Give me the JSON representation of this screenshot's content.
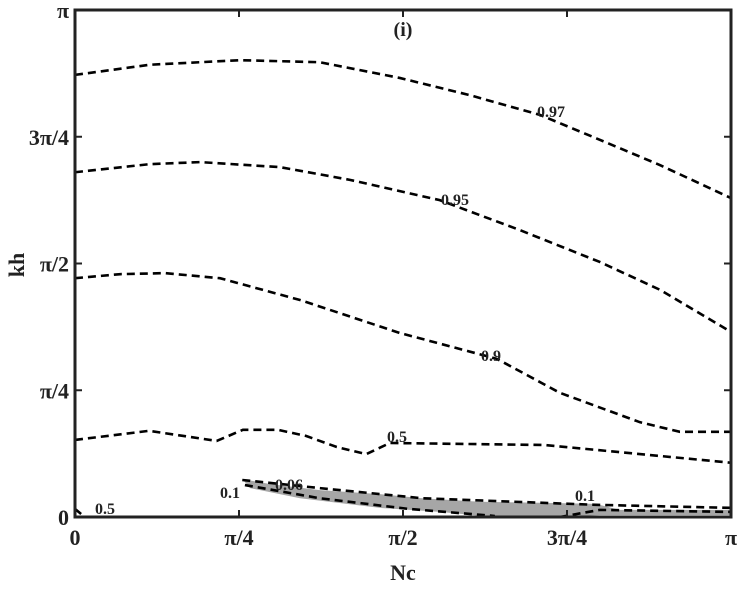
{
  "chart_data": {
    "type": "contour",
    "panel_label": "(i)",
    "xlabel": "Nc",
    "ylabel": "kh",
    "axis_units": "fractions of pi",
    "xlim": [
      0,
      1
    ],
    "ylim": [
      0,
      1
    ],
    "xticks": [
      0,
      0.25,
      0.5,
      0.75,
      1
    ],
    "xtick_labels": [
      "0",
      "π/4",
      "π/2",
      "3π/4",
      "π"
    ],
    "yticks": [
      0,
      0.25,
      0.5,
      0.75,
      1
    ],
    "ytick_labels": [
      "0",
      "π/4",
      "π/2",
      "3π/4",
      "π"
    ],
    "grid": false,
    "shaded_color": "#a6a6a6",
    "line_color": "#000000",
    "contours": [
      {
        "level": "0.97",
        "points": [
          [
            0,
            0.872
          ],
          [
            0.114,
            0.892
          ],
          [
            0.252,
            0.901
          ],
          [
            0.373,
            0.897
          ],
          [
            0.495,
            0.866
          ],
          [
            0.602,
            0.832
          ],
          [
            0.709,
            0.793
          ],
          [
            0.8,
            0.744
          ],
          [
            0.892,
            0.694
          ],
          [
            1,
            0.629
          ]
        ]
      },
      {
        "level": "0.95",
        "points": [
          [
            0,
            0.68
          ],
          [
            0.114,
            0.696
          ],
          [
            0.191,
            0.7
          ],
          [
            0.313,
            0.69
          ],
          [
            0.419,
            0.665
          ],
          [
            0.556,
            0.625
          ],
          [
            0.678,
            0.566
          ],
          [
            0.8,
            0.503
          ],
          [
            0.892,
            0.448
          ],
          [
            1,
            0.365
          ]
        ]
      },
      {
        "level": "0.9",
        "points": [
          [
            0,
            0.471
          ],
          [
            0.069,
            0.479
          ],
          [
            0.137,
            0.481
          ],
          [
            0.221,
            0.471
          ],
          [
            0.343,
            0.428
          ],
          [
            0.495,
            0.363
          ],
          [
            0.643,
            0.312
          ],
          [
            0.739,
            0.245
          ],
          [
            0.861,
            0.187
          ],
          [
            0.922,
            0.168
          ],
          [
            1,
            0.168
          ]
        ]
      },
      {
        "level": "0.5",
        "points": [
          [
            0,
            0.152
          ],
          [
            0.113,
            0.17
          ],
          [
            0.216,
            0.15
          ],
          [
            0.256,
            0.172
          ],
          [
            0.309,
            0.172
          ],
          [
            0.352,
            0.16
          ],
          [
            0.399,
            0.138
          ],
          [
            0.444,
            0.124
          ],
          [
            0.48,
            0.146
          ],
          [
            0.716,
            0.142
          ],
          [
            1,
            0.107
          ]
        ]
      },
      {
        "level": "0.5",
        "points": [
          [
            0,
            0.016
          ],
          [
            0.011,
            0.004
          ]
        ]
      },
      {
        "level": "0.06",
        "points": [
          [
            0.255,
            0.073
          ],
          [
            0.373,
            0.057
          ],
          [
            0.529,
            0.037
          ],
          [
            0.794,
            0.024
          ],
          [
            1,
            0.018
          ]
        ]
      },
      {
        "level": "0.1",
        "points": [
          [
            0.259,
            0.063
          ],
          [
            0.373,
            0.037
          ],
          [
            0.508,
            0.016
          ],
          [
            0.64,
            0.002
          ]
        ]
      },
      {
        "level": "0.1",
        "points": [
          [
            0.739,
            0
          ],
          [
            0.8,
            0.014
          ],
          [
            1,
            0.01
          ]
        ]
      }
    ],
    "shaded_region": [
      [
        0.255,
        0.075
      ],
      [
        0.297,
        0.065
      ],
      [
        0.373,
        0.053
      ],
      [
        0.465,
        0.045
      ],
      [
        0.529,
        0.037
      ],
      [
        0.617,
        0.03
      ],
      [
        0.709,
        0.028
      ],
      [
        0.794,
        0.026
      ],
      [
        0.83,
        0.014
      ],
      [
        1,
        0.014
      ],
      [
        1,
        0.004
      ],
      [
        0.8,
        0.004
      ],
      [
        0.739,
        0
      ],
      [
        0.64,
        0
      ],
      [
        0.556,
        0.01
      ],
      [
        0.465,
        0.018
      ],
      [
        0.343,
        0.037
      ],
      [
        0.267,
        0.057
      ]
    ]
  }
}
